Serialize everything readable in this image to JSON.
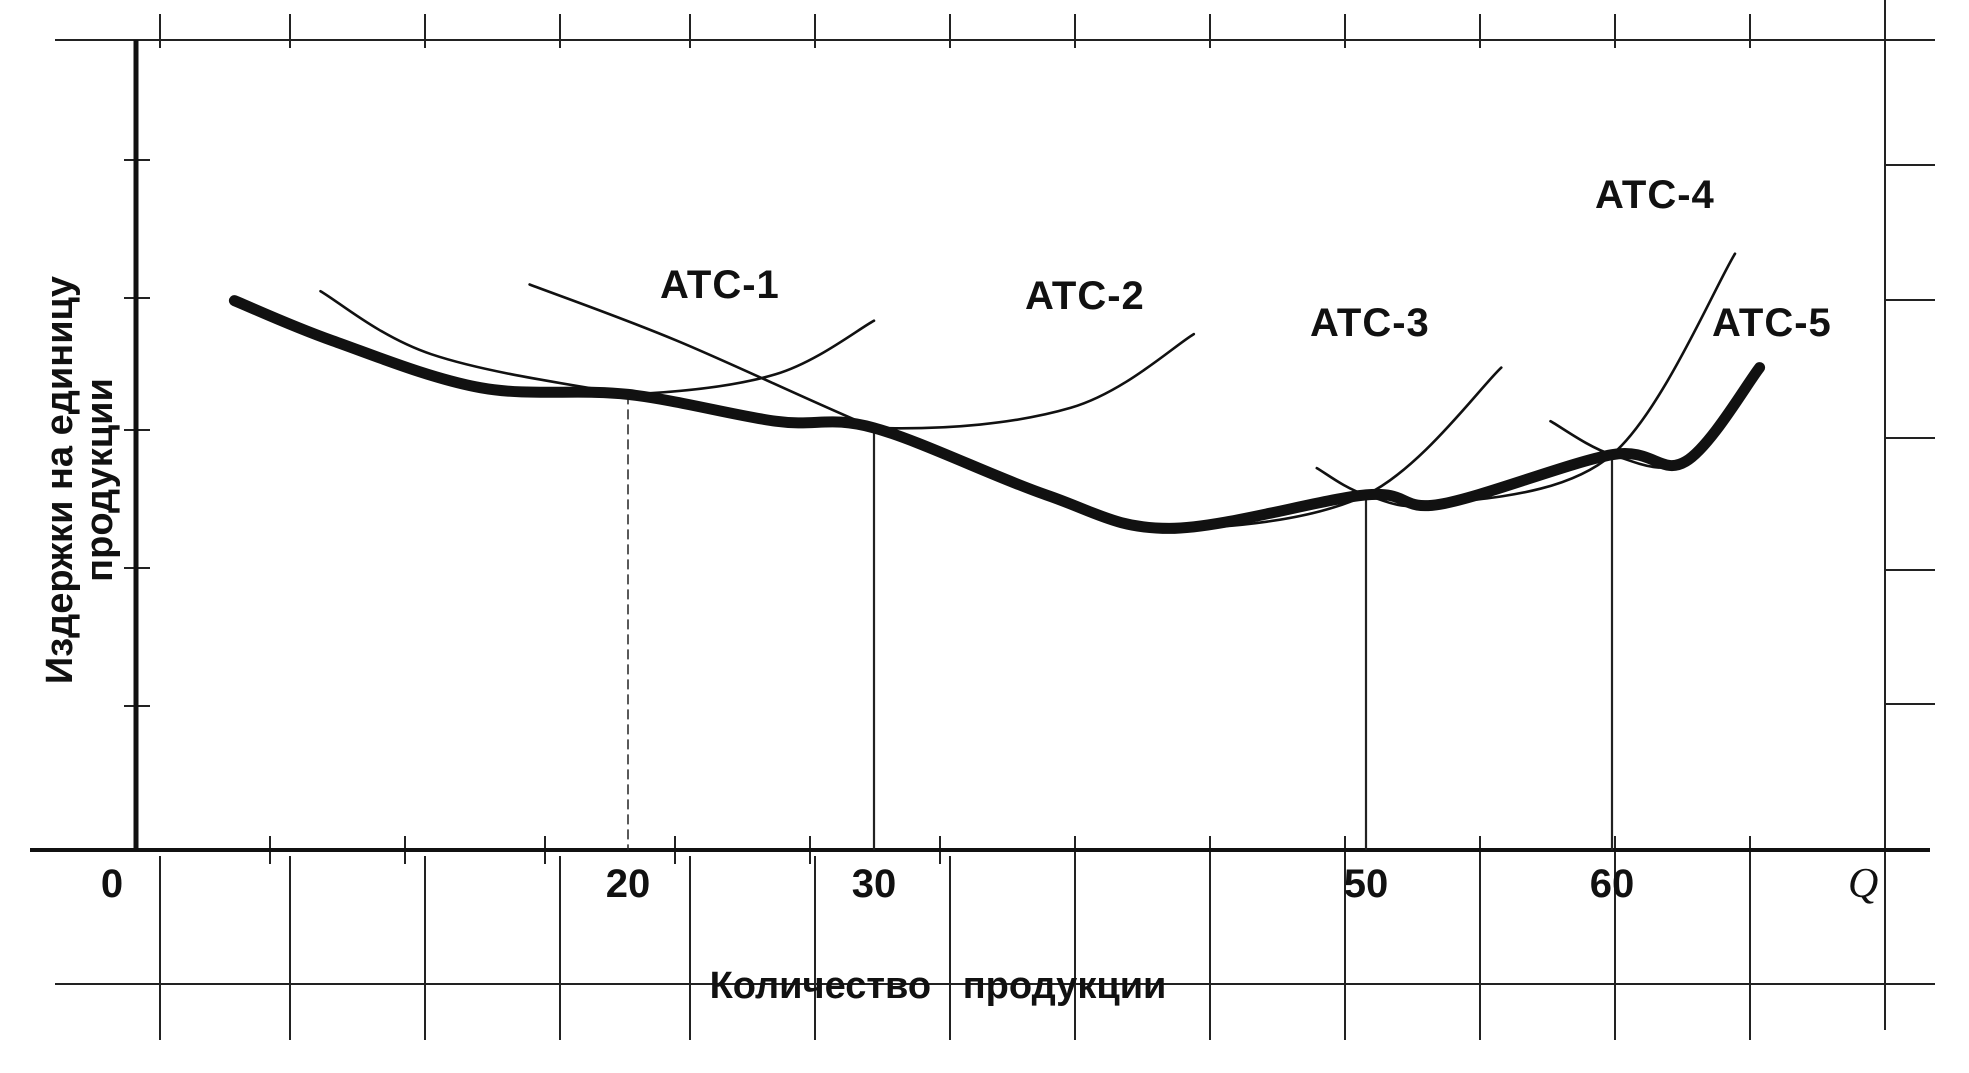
{
  "chart_data": {
    "type": "line",
    "title": "",
    "xlabel": "Количество   продукции",
    "ylabel_lines": [
      "Издержки на единицу",
      "продукции"
    ],
    "x_end_label": "Q",
    "xlim": [
      0,
      67
    ],
    "ylim": [
      0,
      6
    ],
    "x_ticks": [
      0,
      20,
      30,
      50,
      60
    ],
    "grid": true,
    "series": [
      {
        "name": "ATC-1",
        "x": [
          4,
          8,
          14,
          20,
          26,
          30
        ],
        "y": [
          4.1,
          3.8,
          3.45,
          3.4,
          3.55,
          3.95
        ]
      },
      {
        "name": "ATC-2",
        "x": [
          7.5,
          12,
          20,
          30,
          38,
          43
        ],
        "y": [
          4.17,
          3.7,
          3.4,
          3.15,
          3.3,
          3.85
        ]
      },
      {
        "name": "ATC-3",
        "x": [
          16,
          22,
          30,
          37,
          42,
          50,
          55.5
        ],
        "y": [
          4.22,
          3.8,
          3.15,
          2.65,
          2.4,
          2.65,
          3.6
        ]
      },
      {
        "name": "ATC-4",
        "x": [
          48,
          50,
          53,
          60,
          65
        ],
        "y": [
          2.85,
          2.65,
          2.58,
          2.95,
          4.45
        ]
      },
      {
        "name": "ATC-5",
        "x": [
          57.5,
          60,
          63,
          66
        ],
        "y": [
          3.2,
          2.95,
          2.9,
          3.6
        ]
      }
    ],
    "lrac_envelope": {
      "x": [
        4,
        8,
        14,
        20,
        26,
        30,
        37,
        42,
        50,
        53,
        60,
        63,
        66
      ],
      "y": [
        4.1,
        3.8,
        3.45,
        3.4,
        3.2,
        3.15,
        2.65,
        2.4,
        2.65,
        2.58,
        2.95,
        2.9,
        3.6
      ]
    },
    "drop_lines_x": [
      20,
      30,
      50,
      60
    ]
  }
}
